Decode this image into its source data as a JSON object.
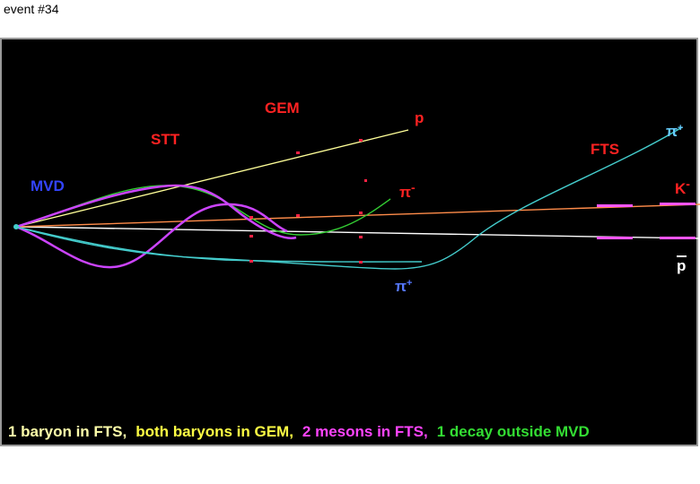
{
  "header": {
    "title": "event #34"
  },
  "labels": {
    "gem": "GEM",
    "proton": "p",
    "stt": "STT",
    "fts": "FTS",
    "pion_plus_top": {
      "base": "π",
      "sup": "+"
    },
    "mvd": "MVD",
    "pion_minus": {
      "base": "π",
      "sup": "-"
    },
    "kaon_minus": {
      "base": "K",
      "sup": "-"
    },
    "antiproton": "p",
    "pion_plus_bottom": {
      "base": "π",
      "sup": "+"
    }
  },
  "caption": [
    "1 baryon in FTS,",
    "both baryons in GEM,",
    "2 mesons in FTS,",
    "1 decay outside MVD"
  ]
}
